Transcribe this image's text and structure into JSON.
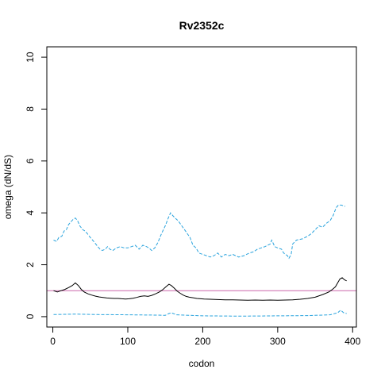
{
  "chart_data": {
    "type": "line",
    "title": "Rv2352c",
    "xlabel": "codon",
    "ylabel": "omega (dN/dS)",
    "xlim": [
      -8,
      405
    ],
    "ylim": [
      -0.4,
      10.4
    ],
    "x_ticks": [
      0,
      100,
      200,
      300,
      400
    ],
    "y_ticks": [
      0,
      2,
      4,
      6,
      8,
      10
    ],
    "reference_line": {
      "y": 1,
      "color": "#cc66aa"
    },
    "grid": false,
    "legend": "none",
    "series": [
      {
        "style": "dashed",
        "color": "#29a3dd",
        "points": [
          [
            1,
            2.95
          ],
          [
            5,
            2.9
          ],
          [
            8,
            3.05
          ],
          [
            12,
            3.1
          ],
          [
            15,
            3.3
          ],
          [
            18,
            3.35
          ],
          [
            21,
            3.55
          ],
          [
            24,
            3.65
          ],
          [
            27,
            3.75
          ],
          [
            30,
            3.8
          ],
          [
            33,
            3.7
          ],
          [
            36,
            3.5
          ],
          [
            40,
            3.35
          ],
          [
            43,
            3.3
          ],
          [
            46,
            3.2
          ],
          [
            50,
            3.05
          ],
          [
            53,
            2.95
          ],
          [
            56,
            2.85
          ],
          [
            60,
            2.7
          ],
          [
            63,
            2.6
          ],
          [
            66,
            2.55
          ],
          [
            70,
            2.6
          ],
          [
            73,
            2.7
          ],
          [
            76,
            2.6
          ],
          [
            80,
            2.55
          ],
          [
            85,
            2.65
          ],
          [
            90,
            2.7
          ],
          [
            95,
            2.65
          ],
          [
            100,
            2.65
          ],
          [
            105,
            2.7
          ],
          [
            110,
            2.75
          ],
          [
            115,
            2.6
          ],
          [
            120,
            2.75
          ],
          [
            125,
            2.7
          ],
          [
            128,
            2.65
          ],
          [
            132,
            2.55
          ],
          [
            136,
            2.65
          ],
          [
            140,
            2.85
          ],
          [
            145,
            3.2
          ],
          [
            150,
            3.5
          ],
          [
            154,
            3.8
          ],
          [
            157,
            4.0
          ],
          [
            160,
            3.9
          ],
          [
            163,
            3.8
          ],
          [
            167,
            3.7
          ],
          [
            172,
            3.5
          ],
          [
            177,
            3.3
          ],
          [
            183,
            3.05
          ],
          [
            187,
            2.75
          ],
          [
            191,
            2.65
          ],
          [
            195,
            2.45
          ],
          [
            200,
            2.4
          ],
          [
            205,
            2.35
          ],
          [
            210,
            2.3
          ],
          [
            215,
            2.35
          ],
          [
            220,
            2.45
          ],
          [
            225,
            2.3
          ],
          [
            230,
            2.4
          ],
          [
            235,
            2.35
          ],
          [
            240,
            2.4
          ],
          [
            248,
            2.3
          ],
          [
            255,
            2.35
          ],
          [
            262,
            2.45
          ],
          [
            268,
            2.5
          ],
          [
            273,
            2.6
          ],
          [
            278,
            2.65
          ],
          [
            283,
            2.7
          ],
          [
            290,
            2.8
          ],
          [
            292,
            2.95
          ],
          [
            296,
            2.7
          ],
          [
            300,
            2.65
          ],
          [
            305,
            2.6
          ],
          [
            308,
            2.45
          ],
          [
            313,
            2.35
          ],
          [
            315,
            2.25
          ],
          [
            318,
            2.4
          ],
          [
            320,
            2.8
          ],
          [
            325,
            2.95
          ],
          [
            333,
            3.0
          ],
          [
            340,
            3.1
          ],
          [
            345,
            3.2
          ],
          [
            350,
            3.35
          ],
          [
            355,
            3.5
          ],
          [
            360,
            3.45
          ],
          [
            365,
            3.6
          ],
          [
            370,
            3.7
          ],
          [
            374,
            3.9
          ],
          [
            378,
            4.2
          ],
          [
            381,
            4.3
          ],
          [
            385,
            4.3
          ],
          [
            390,
            4.25
          ]
        ]
      },
      {
        "style": "solid",
        "color": "#000000",
        "points": [
          [
            1,
            1.0
          ],
          [
            6,
            0.95
          ],
          [
            11,
            1.0
          ],
          [
            16,
            1.05
          ],
          [
            21,
            1.12
          ],
          [
            26,
            1.2
          ],
          [
            30,
            1.3
          ],
          [
            34,
            1.2
          ],
          [
            38,
            1.05
          ],
          [
            42,
            0.95
          ],
          [
            47,
            0.88
          ],
          [
            52,
            0.83
          ],
          [
            57,
            0.79
          ],
          [
            62,
            0.76
          ],
          [
            67,
            0.74
          ],
          [
            72,
            0.72
          ],
          [
            77,
            0.71
          ],
          [
            82,
            0.7
          ],
          [
            87,
            0.7
          ],
          [
            92,
            0.69
          ],
          [
            97,
            0.68
          ],
          [
            102,
            0.69
          ],
          [
            107,
            0.71
          ],
          [
            112,
            0.74
          ],
          [
            117,
            0.78
          ],
          [
            122,
            0.8
          ],
          [
            127,
            0.78
          ],
          [
            132,
            0.82
          ],
          [
            137,
            0.88
          ],
          [
            142,
            0.95
          ],
          [
            147,
            1.05
          ],
          [
            151,
            1.15
          ],
          [
            155,
            1.25
          ],
          [
            158,
            1.2
          ],
          [
            162,
            1.1
          ],
          [
            166,
            0.98
          ],
          [
            170,
            0.9
          ],
          [
            174,
            0.83
          ],
          [
            178,
            0.78
          ],
          [
            182,
            0.75
          ],
          [
            187,
            0.73
          ],
          [
            192,
            0.7
          ],
          [
            197,
            0.69
          ],
          [
            202,
            0.68
          ],
          [
            210,
            0.67
          ],
          [
            220,
            0.66
          ],
          [
            230,
            0.65
          ],
          [
            240,
            0.65
          ],
          [
            250,
            0.64
          ],
          [
            260,
            0.63
          ],
          [
            270,
            0.64
          ],
          [
            280,
            0.63
          ],
          [
            290,
            0.64
          ],
          [
            300,
            0.63
          ],
          [
            310,
            0.64
          ],
          [
            320,
            0.65
          ],
          [
            330,
            0.67
          ],
          [
            340,
            0.7
          ],
          [
            350,
            0.75
          ],
          [
            360,
            0.85
          ],
          [
            368,
            0.95
          ],
          [
            373,
            1.05
          ],
          [
            377,
            1.15
          ],
          [
            380,
            1.3
          ],
          [
            383,
            1.45
          ],
          [
            386,
            1.5
          ],
          [
            389,
            1.42
          ],
          [
            392,
            1.38
          ]
        ]
      },
      {
        "style": "dashed",
        "color": "#29a3dd",
        "points": [
          [
            1,
            0.08
          ],
          [
            30,
            0.1
          ],
          [
            60,
            0.08
          ],
          [
            100,
            0.07
          ],
          [
            140,
            0.06
          ],
          [
            150,
            0.05
          ],
          [
            155,
            0.12
          ],
          [
            158,
            0.15
          ],
          [
            165,
            0.07
          ],
          [
            200,
            0.03
          ],
          [
            250,
            0.02
          ],
          [
            300,
            0.03
          ],
          [
            340,
            0.04
          ],
          [
            370,
            0.07
          ],
          [
            380,
            0.15
          ],
          [
            384,
            0.25
          ],
          [
            388,
            0.15
          ],
          [
            392,
            0.12
          ]
        ]
      }
    ]
  }
}
